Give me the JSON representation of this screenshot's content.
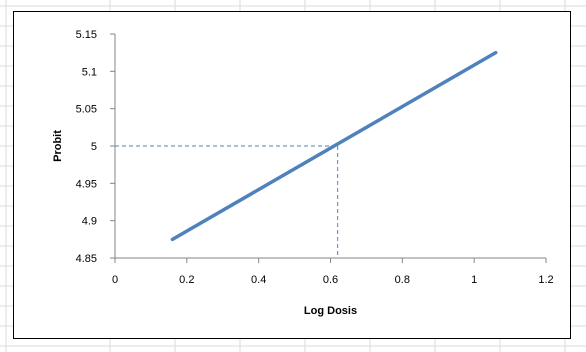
{
  "chart_data": {
    "type": "line",
    "title": "",
    "xlabel": "Log Dosis",
    "ylabel": "Probit",
    "xlim": [
      0,
      1.2
    ],
    "ylim": [
      4.85,
      5.15
    ],
    "x_ticks": [
      "0",
      "0.2",
      "0.4",
      "0.6",
      "0.8",
      "1",
      "1.2"
    ],
    "y_ticks": [
      "4.85",
      "4.9",
      "4.95",
      "5",
      "5.05",
      "5.1",
      "5.15"
    ],
    "grid": false,
    "legend": "none",
    "series": [
      {
        "x": [
          0.16,
          1.06
        ],
        "y": [
          4.875,
          5.125
        ],
        "color": "#4f81bd"
      }
    ],
    "reference": {
      "x": 0.62,
      "y": 5.0,
      "style": "dashed",
      "color": "#4f81bd"
    }
  }
}
